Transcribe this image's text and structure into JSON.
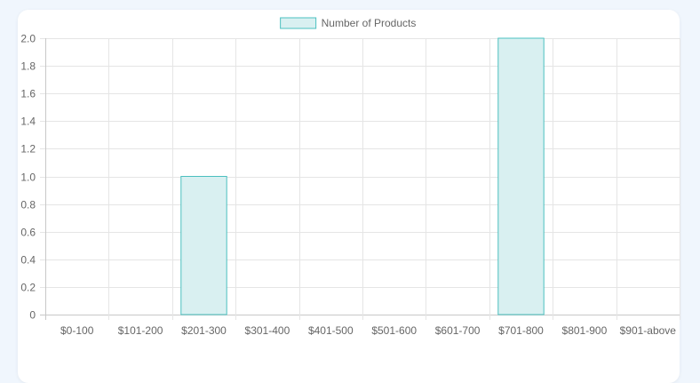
{
  "chart_data": {
    "type": "bar",
    "categories": [
      "$0-100",
      "$101-200",
      "$201-300",
      "$301-400",
      "$401-500",
      "$501-600",
      "$601-700",
      "$701-800",
      "$801-900",
      "$901-above"
    ],
    "series": [
      {
        "name": "Number of Products",
        "values": [
          0,
          0,
          1,
          0,
          0,
          0,
          0,
          2,
          0,
          0
        ]
      }
    ],
    "ylim": [
      0,
      2.0
    ],
    "yticks": [
      "0",
      "0.2",
      "0.4",
      "0.6",
      "0.8",
      "1.0",
      "1.2",
      "1.4",
      "1.6",
      "1.8",
      "2.0"
    ],
    "ytick_values": [
      0,
      0.2,
      0.4,
      0.6,
      0.8,
      1.0,
      1.2,
      1.4,
      1.6,
      1.8,
      2.0
    ],
    "grid": true,
    "legend_position": "top-center",
    "colors": {
      "bar_fill": "#d9f0f1",
      "bar_stroke": "#4bc0c0",
      "grid": "#e5e5e5",
      "axis": "#c8c8c8",
      "text": "#666666"
    }
  }
}
